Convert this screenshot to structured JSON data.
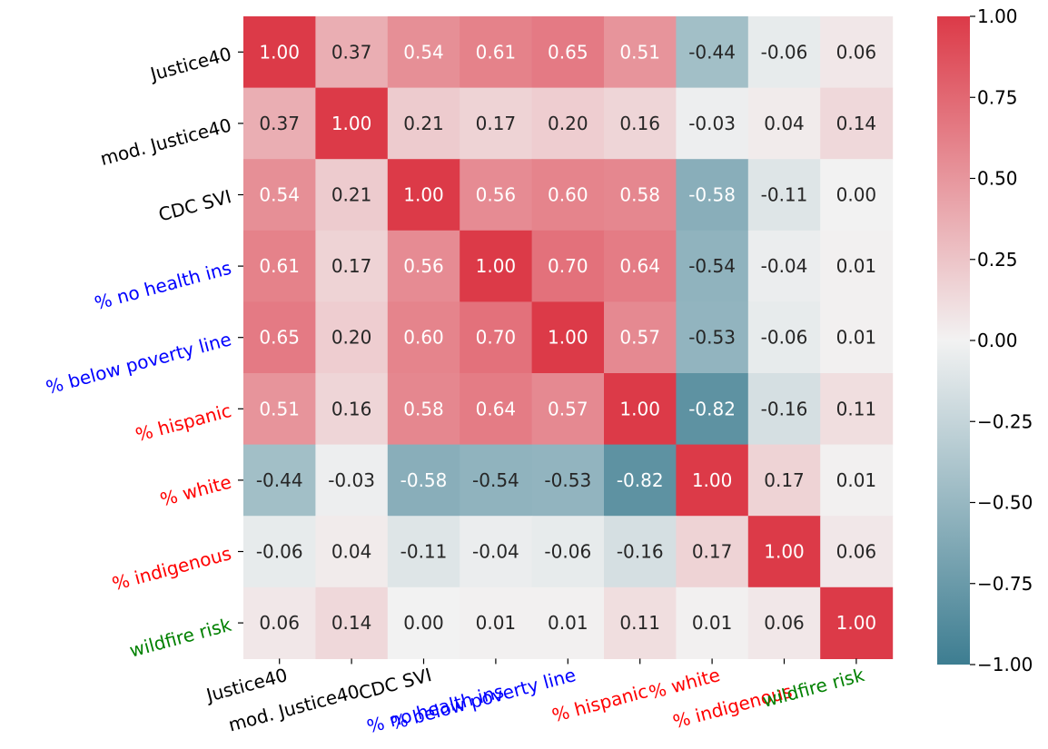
{
  "chart_data": {
    "type": "heatmap",
    "title": "",
    "xlabel": "",
    "ylabel": "",
    "labels": [
      "Justice40",
      "mod. Justice40",
      "CDC SVI",
      "% no health ins",
      "% below poverty line",
      "% hispanic",
      "% white",
      "% indigenous",
      "wildfire risk"
    ],
    "label_colors": [
      "#000000",
      "#000000",
      "#000000",
      "#0000ff",
      "#0000ff",
      "#ff0000",
      "#ff0000",
      "#ff0000",
      "#008000"
    ],
    "matrix": [
      [
        1.0,
        0.37,
        0.54,
        0.61,
        0.65,
        0.51,
        -0.44,
        -0.06,
        0.06
      ],
      [
        0.37,
        1.0,
        0.21,
        0.17,
        0.2,
        0.16,
        -0.03,
        0.04,
        0.14
      ],
      [
        0.54,
        0.21,
        1.0,
        0.56,
        0.6,
        0.58,
        -0.58,
        -0.11,
        0.0
      ],
      [
        0.61,
        0.17,
        0.56,
        1.0,
        0.7,
        0.64,
        -0.54,
        -0.04,
        0.01
      ],
      [
        0.65,
        0.2,
        0.6,
        0.7,
        1.0,
        0.57,
        -0.53,
        -0.06,
        0.01
      ],
      [
        0.51,
        0.16,
        0.58,
        0.64,
        0.57,
        1.0,
        -0.82,
        -0.16,
        0.11
      ],
      [
        -0.44,
        -0.03,
        -0.58,
        -0.54,
        -0.53,
        -0.82,
        1.0,
        0.17,
        0.01
      ],
      [
        -0.06,
        0.04,
        -0.11,
        -0.04,
        -0.06,
        -0.16,
        0.17,
        1.0,
        0.06
      ],
      [
        0.06,
        0.14,
        0.0,
        0.01,
        0.01,
        0.11,
        0.01,
        0.06,
        1.0
      ]
    ],
    "vmin": -1.0,
    "vmax": 1.0,
    "colormap": {
      "low": "#3d7d91",
      "mid": "#f2f2f2",
      "high": "#dc3a48"
    },
    "colorbar": {
      "ticks": [
        1.0,
        0.75,
        0.5,
        0.25,
        0.0,
        -0.25,
        -0.5,
        -0.75,
        -1.0
      ],
      "tick_labels": [
        "1.00",
        "0.75",
        "0.50",
        "0.25",
        "0.00",
        "−0.25",
        "−0.50",
        "−0.75",
        "−1.00"
      ]
    },
    "annotation_format": "2 decimals",
    "grid": false
  }
}
